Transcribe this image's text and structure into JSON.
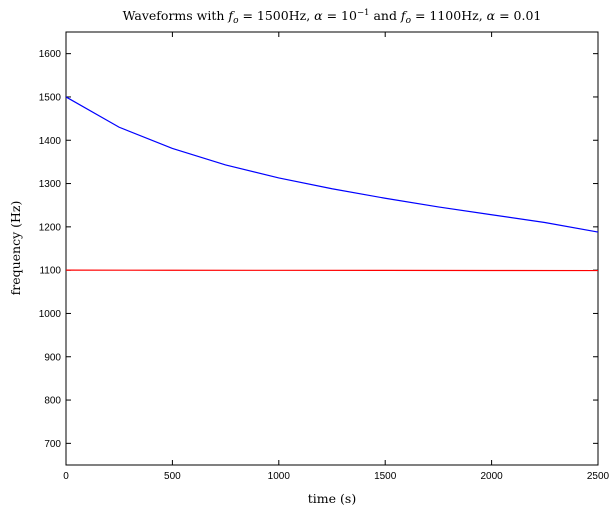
{
  "chart_data": {
    "type": "line",
    "title_parts": {
      "prefix": "Waveforms with ",
      "f1": "f",
      "f1_sub": "o",
      "eq1": " = 1500Hz, ",
      "alpha1": "α",
      "eq2": " = 10",
      "exp": "−1",
      "mid": " and ",
      "f2": "f",
      "f2_sub": "o",
      "eq3": " = 1100Hz, ",
      "alpha2": "α",
      "eq4": " = 0.01"
    },
    "xlabel": "time (s)",
    "ylabel": "frequency (Hz)",
    "xlim": [
      0,
      2500
    ],
    "ylim": [
      650,
      1650
    ],
    "xticks": [
      0,
      500,
      1000,
      1500,
      2000,
      2500
    ],
    "yticks": [
      700,
      800,
      900,
      1000,
      1100,
      1200,
      1300,
      1400,
      1500,
      1600
    ],
    "grid": false,
    "series": [
      {
        "color": "#0000ff",
        "x": [
          0,
          250,
          500,
          750,
          1000,
          1250,
          1500,
          1750,
          2000,
          2250,
          2500
        ],
        "y": [
          1500,
          1430,
          1381,
          1343,
          1313,
          1288,
          1266,
          1246,
          1228,
          1210,
          1188
        ]
      },
      {
        "color": "#ff0000",
        "x": [
          0,
          500,
          1000,
          1500,
          2000,
          2500
        ],
        "y": [
          1100,
          1099.8,
          1099.6,
          1099.4,
          1099.2,
          1099
        ]
      }
    ]
  }
}
